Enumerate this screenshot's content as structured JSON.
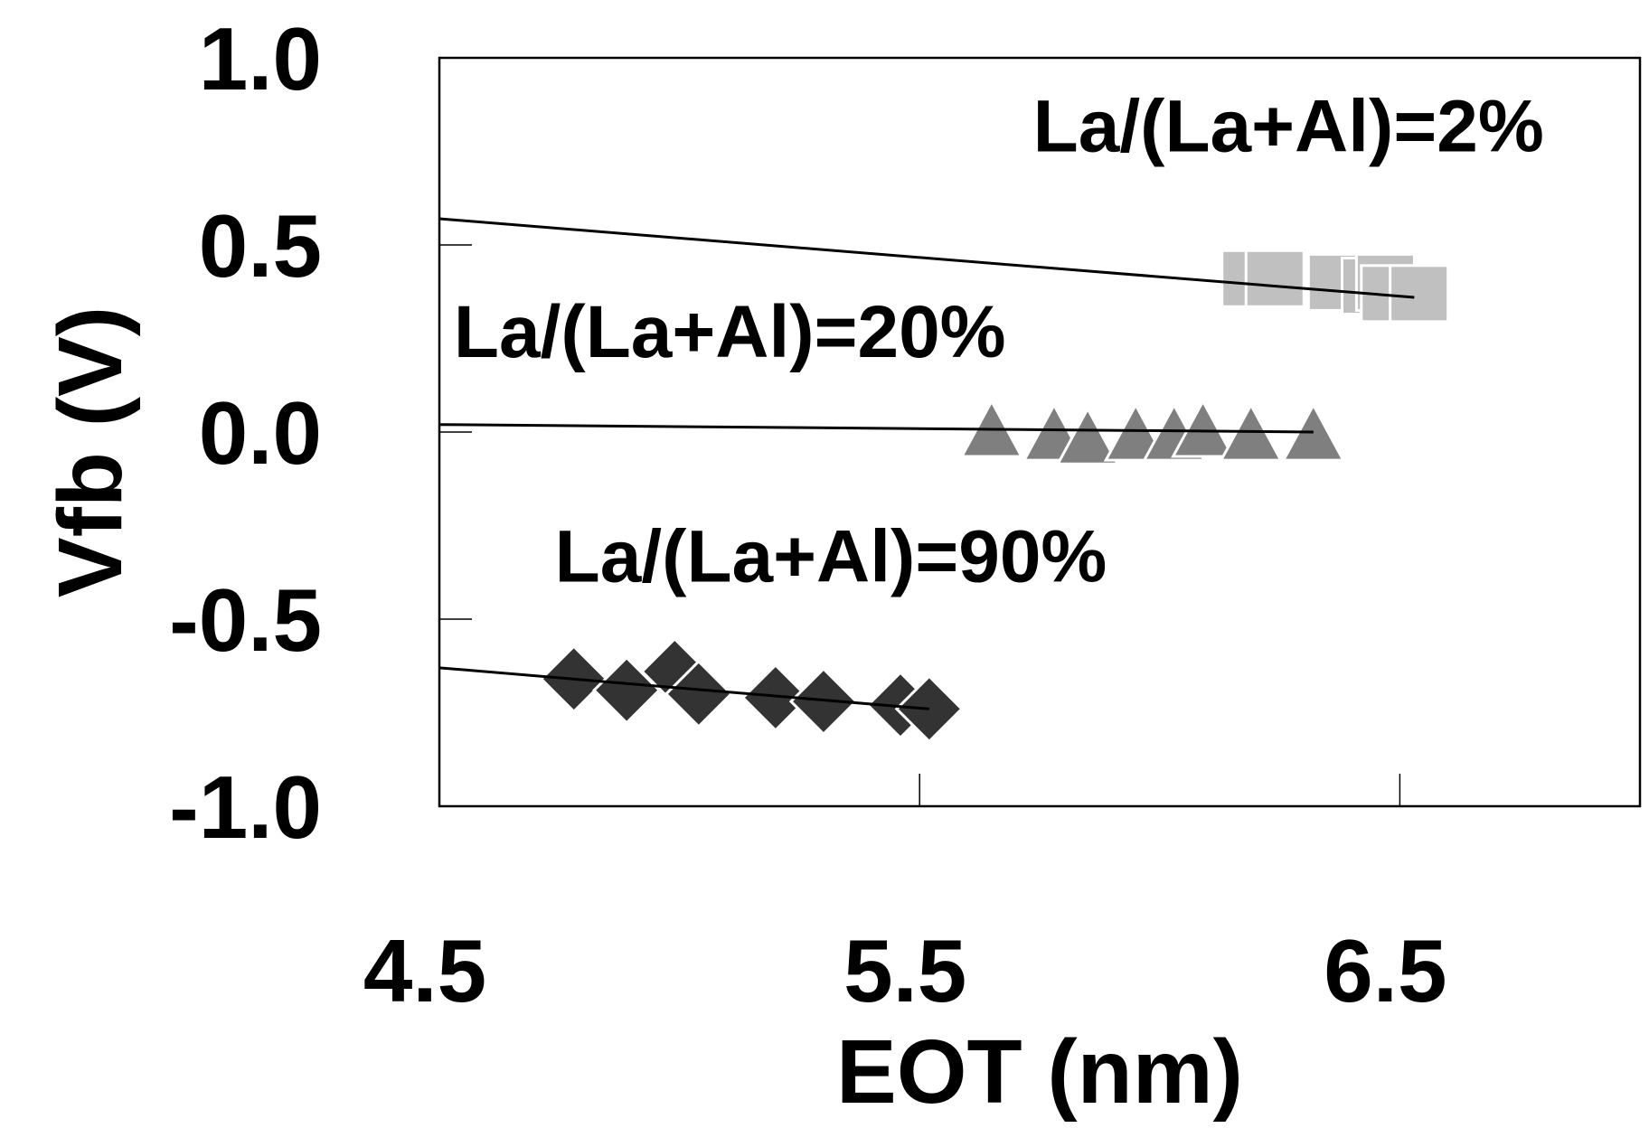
{
  "chart_data": {
    "type": "scatter",
    "title": "",
    "xlabel": "EOT (nm)",
    "ylabel": "Vfb (V)",
    "xlim": [
      4.5,
      7.0
    ],
    "ylim": [
      -1.0,
      1.0
    ],
    "x_ticks": [
      4.5,
      5.5,
      6.5
    ],
    "x_tick_labels": [
      "4.5",
      "5.5",
      "6.5"
    ],
    "y_ticks": [
      1.0,
      0.5,
      0.0,
      -0.5,
      -1.0
    ],
    "y_tick_labels": [
      "1.0",
      "0.5",
      "0.0",
      "-0.5",
      "-1.0"
    ],
    "grid": false,
    "legend": "none",
    "series": [
      {
        "marker": "square",
        "color": "#c0c0c0",
        "points": [
          [
            6.19,
            0.41
          ],
          [
            6.24,
            0.41
          ],
          [
            6.37,
            0.4
          ],
          [
            6.44,
            0.39
          ],
          [
            6.47,
            0.4
          ],
          [
            6.48,
            0.37
          ],
          [
            6.54,
            0.37
          ]
        ],
        "fit": [
          [
            4.5,
            0.57
          ],
          [
            6.53,
            0.36
          ]
        ]
      },
      {
        "marker": "triangle",
        "color": "#7f7f7f",
        "points": [
          [
            5.65,
            0.0
          ],
          [
            5.78,
            -0.01
          ],
          [
            5.85,
            -0.02
          ],
          [
            5.95,
            -0.01
          ],
          [
            6.03,
            -0.01
          ],
          [
            6.09,
            0.0
          ],
          [
            6.19,
            -0.01
          ],
          [
            6.32,
            -0.01
          ]
        ],
        "fit": [
          [
            4.5,
            0.02
          ],
          [
            6.32,
            0.0
          ]
        ]
      },
      {
        "marker": "diamond",
        "color": "#333333",
        "points": [
          [
            4.78,
            -0.66
          ],
          [
            4.89,
            -0.69
          ],
          [
            4.99,
            -0.64
          ],
          [
            5.04,
            -0.7
          ],
          [
            5.2,
            -0.71
          ],
          [
            5.3,
            -0.72
          ],
          [
            5.46,
            -0.73
          ],
          [
            5.52,
            -0.74
          ]
        ],
        "fit": [
          [
            4.5,
            -0.63
          ],
          [
            5.52,
            -0.74
          ]
        ]
      }
    ],
    "annotations": [
      {
        "text": "La/(La+Al)=2%",
        "x": 6.8,
        "y": 0.75,
        "anchor": "end"
      },
      {
        "text": "La/(La+Al)=20%",
        "x": 4.53,
        "y": 0.2,
        "anchor": "start"
      },
      {
        "text": "La/(La+Al)=90%",
        "x": 5.89,
        "y": -0.4,
        "anchor": "end"
      }
    ]
  }
}
